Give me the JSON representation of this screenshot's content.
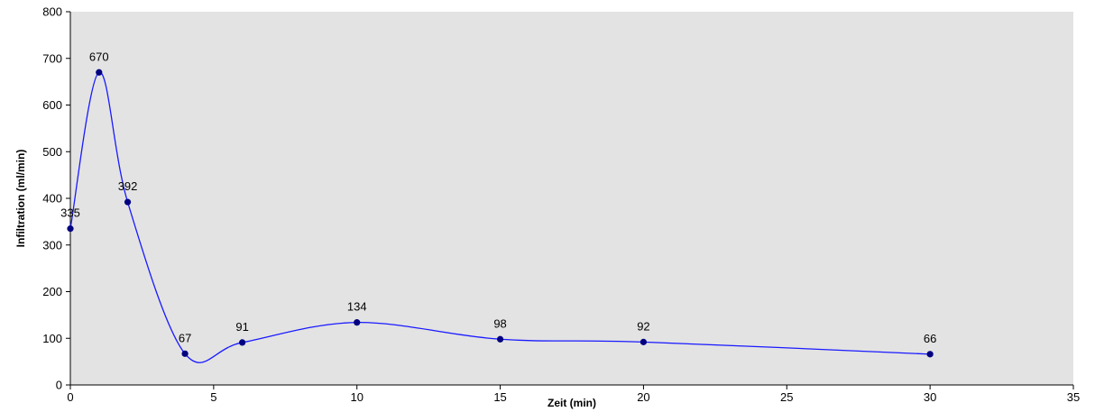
{
  "chart_data": {
    "type": "line",
    "title": "",
    "xlabel": "Zeit (min)",
    "ylabel": "Infiltration (ml/min)",
    "xlim": [
      0,
      35
    ],
    "ylim": [
      0,
      800
    ],
    "xticks": [
      0,
      5,
      10,
      15,
      20,
      25,
      30,
      35
    ],
    "yticks": [
      0,
      100,
      200,
      300,
      400,
      500,
      600,
      700,
      800
    ],
    "xtick_labels": [
      "0",
      "5",
      "10",
      "15",
      "20",
      "25",
      "30",
      "35"
    ],
    "ytick_labels": [
      "0",
      "100",
      "200",
      "300",
      "400",
      "500",
      "600",
      "700",
      "800"
    ],
    "grid": false,
    "smoothed": true,
    "plot_background": "#e3e3e3",
    "line_color": "#1a1aff",
    "marker_color": "#000080",
    "series": [
      {
        "x": [
          0,
          1,
          2,
          4,
          6,
          10,
          15,
          20,
          30
        ],
        "y": [
          335,
          670,
          392,
          67,
          91,
          134,
          98,
          92,
          66
        ],
        "labels": [
          "335",
          "670",
          "392",
          "67",
          "91",
          "134",
          "98",
          "92",
          "66"
        ]
      }
    ]
  }
}
